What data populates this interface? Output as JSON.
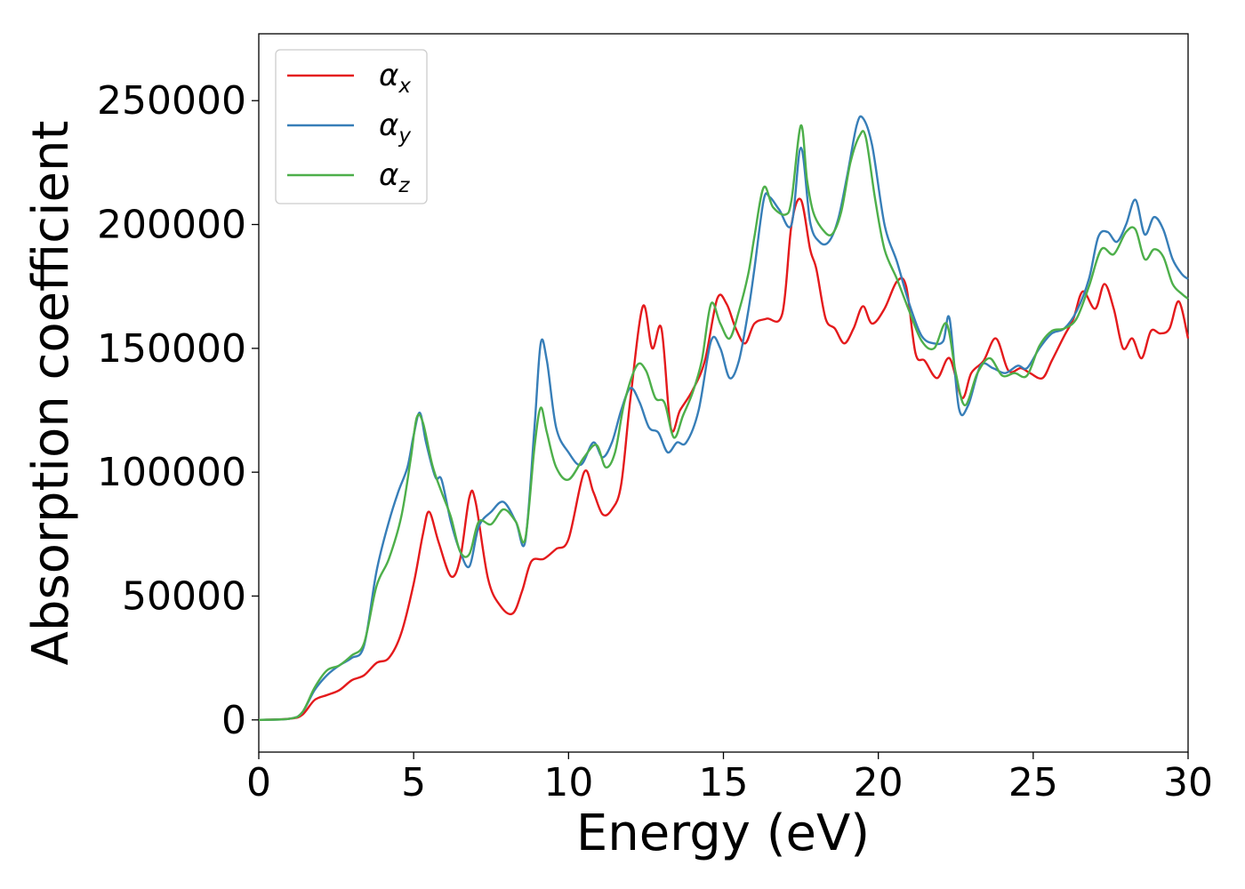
{
  "chart_data": {
    "type": "line",
    "xlabel": "Energy (eV)",
    "ylabel": "Absorption coefficient",
    "xlim": [
      0,
      30
    ],
    "ylim": [
      -13000,
      277000
    ],
    "xticks": [
      0,
      5,
      10,
      15,
      20,
      25,
      30
    ],
    "yticks": [
      0,
      50000,
      100000,
      150000,
      200000,
      250000
    ],
    "grid": false,
    "legend_position": "top-left",
    "series": [
      {
        "name": "α_x",
        "symbol": "α",
        "sub": "x",
        "color": "#e41a1c",
        "x": [
          0,
          1,
          1.4,
          1.8,
          2.2,
          2.6,
          3.0,
          3.4,
          3.8,
          4.2,
          4.6,
          5.0,
          5.3,
          5.5,
          5.8,
          6.2,
          6.5,
          6.8,
          7.0,
          7.4,
          7.8,
          8.2,
          8.5,
          8.8,
          9.2,
          9.6,
          10.0,
          10.5,
          10.8,
          11.1,
          11.4,
          11.7,
          12.0,
          12.4,
          12.7,
          13.0,
          13.3,
          13.6,
          14.0,
          14.4,
          14.8,
          15.1,
          15.4,
          15.7,
          16.0,
          16.4,
          16.9,
          17.2,
          17.5,
          17.8,
          18.0,
          18.3,
          18.6,
          18.9,
          19.2,
          19.5,
          19.8,
          20.2,
          20.6,
          20.9,
          21.2,
          21.5,
          21.9,
          22.3,
          22.7,
          23.0,
          23.4,
          23.8,
          24.2,
          24.6,
          24.9,
          25.3,
          25.6,
          26.0,
          26.3,
          26.6,
          27.0,
          27.3,
          27.6,
          27.9,
          28.2,
          28.5,
          28.8,
          29.1,
          29.4,
          29.7,
          30.0
        ],
        "values": [
          0,
          500,
          2000,
          8000,
          10000,
          12000,
          16000,
          18000,
          23000,
          25000,
          35000,
          55000,
          75000,
          84000,
          72000,
          58000,
          65000,
          90000,
          88000,
          57000,
          46000,
          43000,
          52000,
          64000,
          65000,
          69000,
          73000,
          100000,
          92000,
          83000,
          85000,
          95000,
          130000,
          167000,
          150000,
          158000,
          118000,
          125000,
          133000,
          145000,
          170000,
          168000,
          158000,
          152000,
          160000,
          162000,
          164000,
          200000,
          210000,
          190000,
          182000,
          162000,
          158000,
          152000,
          158000,
          167000,
          160000,
          166000,
          177000,
          175000,
          148000,
          145000,
          138000,
          146000,
          130000,
          140000,
          145000,
          154000,
          141000,
          142000,
          140000,
          138000,
          145000,
          155000,
          162000,
          173000,
          166000,
          176000,
          166000,
          150000,
          154000,
          146000,
          157000,
          156000,
          158000,
          169000,
          154000
        ]
      },
      {
        "name": "α_y",
        "symbol": "α",
        "sub": "y",
        "color": "#377eb8",
        "x": [
          0,
          1,
          1.4,
          1.8,
          2.2,
          2.6,
          3.0,
          3.4,
          3.8,
          4.2,
          4.5,
          4.8,
          5.0,
          5.2,
          5.4,
          5.7,
          5.9,
          6.2,
          6.5,
          6.8,
          7.1,
          7.5,
          7.9,
          8.3,
          8.6,
          8.9,
          9.1,
          9.3,
          9.6,
          10.0,
          10.4,
          10.8,
          11.1,
          11.4,
          11.7,
          12.0,
          12.3,
          12.6,
          12.9,
          13.2,
          13.5,
          13.8,
          14.2,
          14.6,
          14.9,
          15.2,
          15.5,
          15.8,
          16.0,
          16.3,
          16.5,
          16.8,
          17.2,
          17.5,
          17.8,
          18.1,
          18.4,
          18.7,
          19.0,
          19.3,
          19.5,
          19.8,
          20.2,
          20.6,
          21.0,
          21.4,
          21.8,
          22.1,
          22.3,
          22.6,
          22.9,
          23.3,
          23.7,
          24.1,
          24.5,
          24.8,
          25.2,
          25.6,
          26.0,
          26.4,
          26.8,
          27.1,
          27.4,
          27.7,
          28.0,
          28.3,
          28.6,
          28.9,
          29.2,
          29.5,
          29.8,
          30.0
        ],
        "values": [
          0,
          500,
          3000,
          12000,
          18000,
          22000,
          25000,
          30000,
          60000,
          80000,
          92000,
          102000,
          115000,
          124000,
          112000,
          98000,
          97000,
          80000,
          68000,
          62000,
          78000,
          84000,
          88000,
          80000,
          72000,
          118000,
          152000,
          145000,
          118000,
          108000,
          103000,
          112000,
          106000,
          112000,
          125000,
          134000,
          128000,
          118000,
          116000,
          108000,
          112000,
          112000,
          125000,
          153000,
          150000,
          138000,
          145000,
          165000,
          182000,
          210000,
          211000,
          206000,
          200000,
          231000,
          201000,
          193000,
          193000,
          202000,
          220000,
          240000,
          243000,
          232000,
          200000,
          185000,
          168000,
          155000,
          152000,
          153000,
          162000,
          126000,
          127000,
          143000,
          142000,
          140000,
          143000,
          142000,
          150000,
          156000,
          158000,
          165000,
          178000,
          195000,
          197000,
          193000,
          200000,
          210000,
          196000,
          203000,
          198000,
          186000,
          180000,
          178000
        ]
      },
      {
        "name": "α_z",
        "symbol": "α",
        "sub": "z",
        "color": "#4daf4a",
        "x": [
          0,
          1,
          1.4,
          1.8,
          2.2,
          2.6,
          3.0,
          3.4,
          3.8,
          4.2,
          4.6,
          4.9,
          5.1,
          5.3,
          5.6,
          5.9,
          6.2,
          6.5,
          6.8,
          7.1,
          7.5,
          7.9,
          8.3,
          8.6,
          8.9,
          9.1,
          9.3,
          9.6,
          10.0,
          10.5,
          10.9,
          11.2,
          11.5,
          11.8,
          12.2,
          12.5,
          12.8,
          13.1,
          13.4,
          13.7,
          14.0,
          14.3,
          14.6,
          14.9,
          15.2,
          15.5,
          15.8,
          16.0,
          16.3,
          16.6,
          17.0,
          17.2,
          17.5,
          17.7,
          17.9,
          18.2,
          18.5,
          18.8,
          19.1,
          19.4,
          19.6,
          19.9,
          20.2,
          20.6,
          21.0,
          21.4,
          21.8,
          22.2,
          22.5,
          22.8,
          23.2,
          23.6,
          24.0,
          24.4,
          24.8,
          25.2,
          25.6,
          26.0,
          26.4,
          26.8,
          27.2,
          27.6,
          28.0,
          28.3,
          28.6,
          28.9,
          29.2,
          29.5,
          29.8,
          30.0
        ],
        "values": [
          0,
          500,
          3000,
          13000,
          20000,
          22000,
          26000,
          31000,
          54000,
          65000,
          82000,
          105000,
          122000,
          120000,
          103000,
          92000,
          82000,
          68000,
          67000,
          80000,
          79000,
          85000,
          80000,
          73000,
          110000,
          126000,
          116000,
          102000,
          97000,
          106000,
          111000,
          102000,
          108000,
          128000,
          143000,
          141000,
          130000,
          128000,
          114000,
          123000,
          132000,
          145000,
          168000,
          160000,
          154000,
          165000,
          180000,
          195000,
          215000,
          207000,
          204000,
          210000,
          240000,
          218000,
          205000,
          198000,
          196000,
          205000,
          225000,
          236000,
          235000,
          210000,
          190000,
          178000,
          165000,
          153000,
          150000,
          160000,
          140000,
          127000,
          140000,
          146000,
          139000,
          140000,
          139000,
          151000,
          157000,
          158000,
          162000,
          175000,
          190000,
          188000,
          197000,
          198000,
          186000,
          190000,
          187000,
          176000,
          172000,
          170000
        ]
      }
    ]
  }
}
